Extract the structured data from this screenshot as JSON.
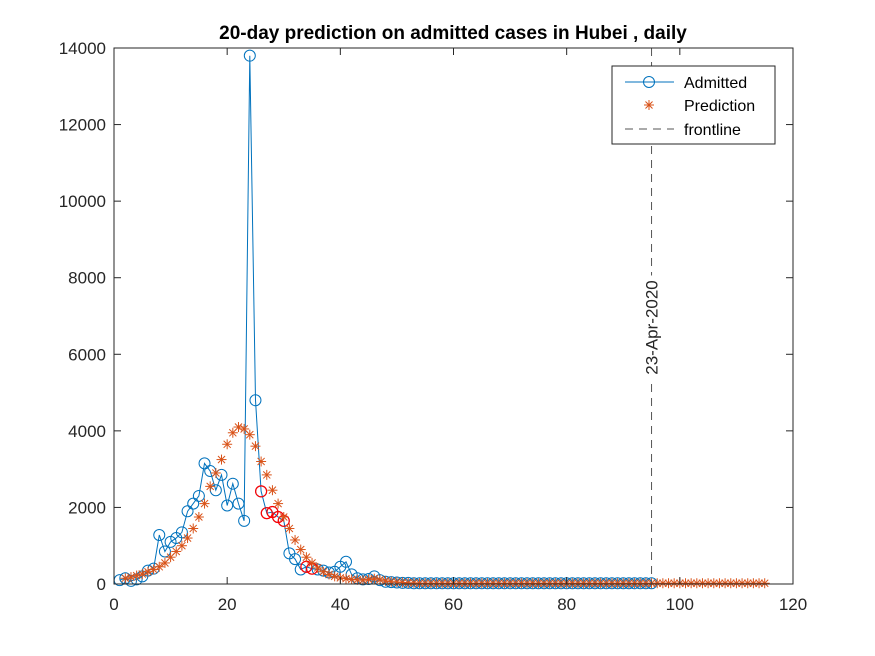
{
  "chart_data": {
    "type": "line",
    "title": "20-day prediction on admitted cases in Hubei , daily",
    "xlabel": "",
    "ylabel": "",
    "xlim": [
      0,
      120
    ],
    "ylim": [
      0,
      14000
    ],
    "xticks": [
      0,
      20,
      40,
      60,
      80,
      100,
      120
    ],
    "yticks": [
      0,
      2000,
      4000,
      6000,
      8000,
      10000,
      12000,
      14000
    ],
    "grid": false,
    "legend_position": "top-right",
    "colors": {
      "admitted": "#0072BD",
      "prediction": "#D95319",
      "highlight": "#FF0000",
      "frontline": "#555555",
      "axis": "#262626"
    },
    "series": [
      {
        "name": "Admitted",
        "marker": "circle",
        "x": [
          1,
          2,
          3,
          4,
          5,
          6,
          7,
          8,
          9,
          10,
          11,
          12,
          13,
          14,
          15,
          16,
          17,
          18,
          19,
          20,
          21,
          22,
          23,
          24,
          25,
          26,
          27,
          28,
          29,
          30,
          31,
          32,
          33,
          34,
          35,
          36,
          37,
          38,
          39,
          40,
          41,
          42,
          43,
          44,
          45,
          46,
          47,
          48,
          49,
          50,
          51,
          52,
          53,
          54,
          55,
          56,
          57,
          58,
          59,
          60,
          61,
          62,
          63,
          64,
          65,
          66,
          67,
          68,
          69,
          70,
          71,
          72,
          73,
          74,
          75,
          76,
          77,
          78,
          79,
          80,
          81,
          82,
          83,
          84,
          85,
          86,
          87,
          88,
          89,
          90,
          91,
          92,
          93,
          94,
          95
        ],
        "y": [
          100,
          150,
          80,
          120,
          200,
          350,
          400,
          1280,
          850,
          1100,
          1200,
          1350,
          1900,
          2100,
          2300,
          3150,
          2950,
          2450,
          2850,
          2050,
          2620,
          2100,
          1650,
          13800,
          4800,
          2420,
          1850,
          1880,
          1750,
          1650,
          800,
          650,
          380,
          450,
          400,
          380,
          350,
          300,
          320,
          450,
          580,
          250,
          150,
          120,
          130,
          200,
          100,
          60,
          50,
          40,
          30,
          30,
          20,
          20,
          20,
          20,
          20,
          20,
          20,
          20,
          20,
          20,
          20,
          20,
          20,
          20,
          20,
          20,
          20,
          20,
          20,
          20,
          20,
          20,
          20,
          20,
          20,
          20,
          20,
          20,
          20,
          20,
          20,
          20,
          20,
          20,
          20,
          20,
          20,
          20,
          20,
          20,
          20,
          20,
          20
        ]
      },
      {
        "name": "Prediction",
        "marker": "asterisk",
        "x": [
          2,
          3,
          4,
          5,
          6,
          7,
          8,
          9,
          10,
          11,
          12,
          13,
          14,
          15,
          16,
          17,
          18,
          19,
          20,
          21,
          22,
          23,
          24,
          25,
          26,
          27,
          28,
          29,
          30,
          31,
          32,
          33,
          34,
          35,
          36,
          37,
          38,
          39,
          40,
          41,
          42,
          43,
          44,
          45,
          46,
          47,
          48,
          49,
          50,
          51,
          52,
          53,
          54,
          55,
          56,
          57,
          58,
          59,
          60,
          61,
          62,
          63,
          64,
          65,
          66,
          67,
          68,
          69,
          70,
          71,
          72,
          73,
          74,
          75,
          76,
          77,
          78,
          79,
          80,
          81,
          82,
          83,
          84,
          85,
          86,
          87,
          88,
          89,
          90,
          91,
          92,
          93,
          94,
          95,
          96,
          97,
          98,
          99,
          100,
          101,
          102,
          103,
          104,
          105,
          106,
          107,
          108,
          109,
          110,
          111,
          112,
          113,
          114,
          115
        ],
        "y": [
          150,
          180,
          220,
          260,
          320,
          380,
          450,
          550,
          700,
          850,
          1000,
          1200,
          1450,
          1750,
          2100,
          2550,
          2900,
          3250,
          3650,
          3950,
          4100,
          4050,
          3900,
          3600,
          3200,
          2850,
          2450,
          2100,
          1750,
          1450,
          1150,
          900,
          700,
          550,
          420,
          320,
          250,
          200,
          160,
          140,
          120,
          110,
          100,
          120,
          140,
          110,
          80,
          60,
          50,
          40,
          30,
          30,
          20,
          20,
          20,
          20,
          20,
          20,
          20,
          20,
          20,
          20,
          20,
          20,
          20,
          20,
          20,
          20,
          20,
          20,
          20,
          20,
          20,
          20,
          20,
          20,
          20,
          20,
          20,
          20,
          20,
          20,
          20,
          20,
          20,
          20,
          20,
          20,
          20,
          20,
          20,
          20,
          20,
          20,
          20,
          20,
          20,
          20,
          20,
          20,
          20,
          20,
          20,
          20,
          20,
          20,
          20,
          20,
          20,
          20,
          20,
          20,
          20,
          20
        ]
      },
      {
        "name": "frontline",
        "line": "dashed",
        "x": [
          95,
          95
        ],
        "y": [
          0,
          14000
        ]
      }
    ],
    "highlighted_points": {
      "x": [
        26,
        27,
        28,
        29,
        30,
        34,
        35
      ],
      "y": [
        2420,
        1850,
        1880,
        1750,
        1650,
        450,
        400
      ]
    },
    "annotations": [
      {
        "text": "23-Apr-2020",
        "x": 95,
        "y": 6700,
        "rotation": -90
      }
    ]
  }
}
